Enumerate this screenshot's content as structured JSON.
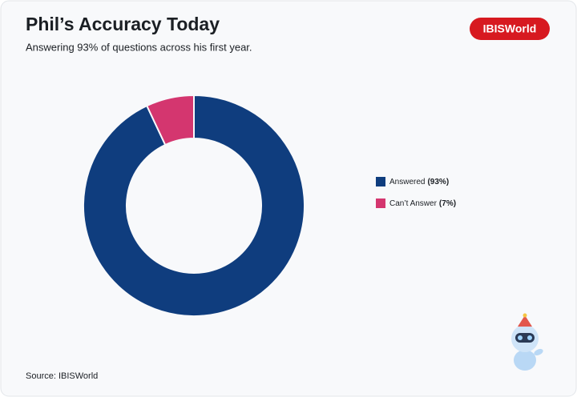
{
  "title": "Phil’s Accuracy Today",
  "subtitle": "Answering 93% of questions across his first year.",
  "logo": "IBISWorld",
  "source": "Source: IBISWorld",
  "chart_data": {
    "type": "donut",
    "categories": [
      "Answered",
      "Can’t Answer"
    ],
    "values": [
      93,
      7
    ],
    "value_labels": [
      "(93%)",
      "(7%)"
    ],
    "colors": [
      "#0f3d7e",
      "#d4366f"
    ],
    "legend": "right"
  }
}
